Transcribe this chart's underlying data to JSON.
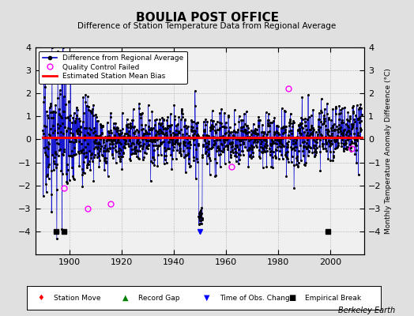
{
  "title": "BOULIA POST OFFICE",
  "subtitle": "Difference of Station Temperature Data from Regional Average",
  "ylabel": "Monthly Temperature Anomaly Difference (°C)",
  "xlim": [
    1887,
    2013
  ],
  "ylim": [
    -5,
    4
  ],
  "yticks_left": [
    -4,
    -3,
    -2,
    -1,
    0,
    1,
    2,
    3,
    4
  ],
  "yticks_right": [
    -4,
    -3,
    -2,
    -1,
    0,
    1,
    2,
    3,
    4
  ],
  "xticks": [
    1900,
    1920,
    1940,
    1960,
    1980,
    2000
  ],
  "start_year": 1890,
  "end_year": 2011,
  "bias_value": 0.1,
  "empirical_breaks": [
    1895,
    1898,
    1999
  ],
  "obs_changes": [
    1950
  ],
  "qc_failed_times": [
    1898,
    1907,
    1916,
    1962,
    1984,
    2008
  ],
  "qc_failed_values": [
    -2.1,
    -3.0,
    -2.8,
    -1.2,
    2.2,
    -0.4
  ],
  "line_color": "#0000CC",
  "dot_color": "#000000",
  "bias_color": "#FF0000",
  "bg_color": "#E0E0E0",
  "plot_bg_color": "#F0F0F0",
  "seed": 17
}
